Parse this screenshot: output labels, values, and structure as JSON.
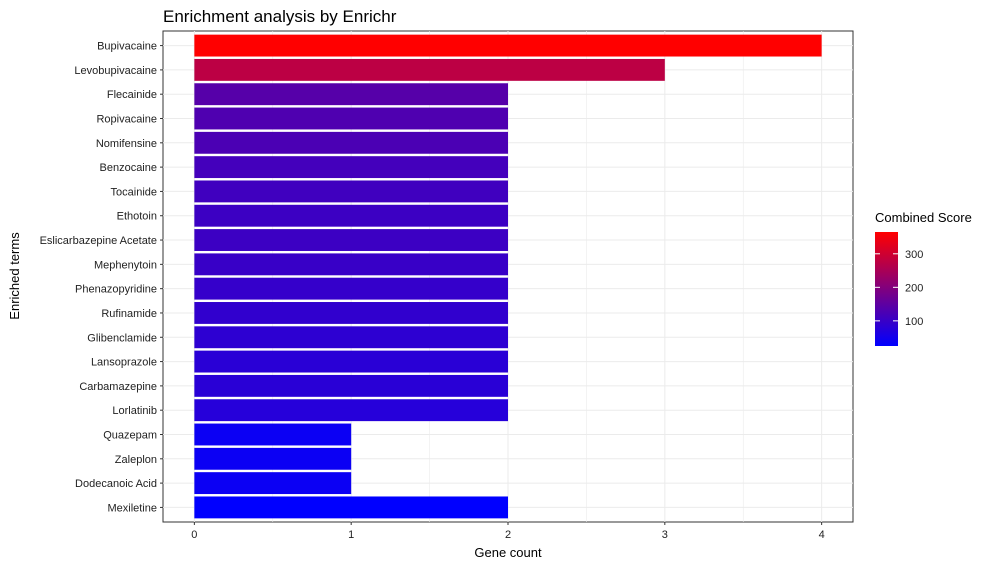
{
  "chart_data": {
    "type": "bar",
    "orientation": "horizontal",
    "title": "Enrichment analysis by Enrichr",
    "xlabel": "Gene count",
    "ylabel": "Enriched terms",
    "xlim": [
      0,
      4
    ],
    "xticks": [
      "0",
      "1",
      "2",
      "3",
      "4"
    ],
    "grid": true,
    "legend": {
      "title": "Combined Score",
      "placement": "right",
      "ticks": [
        "100",
        "200",
        "300"
      ],
      "tick_values": [
        100,
        200,
        300
      ],
      "range": [
        25,
        365
      ],
      "low_color": "#0000FF",
      "high_color": "#FF0000"
    },
    "categories": [
      "Bupivacaine",
      "Levobupivacaine",
      "Flecainide",
      "Ropivacaine",
      "Nomifensine",
      "Benzocaine",
      "Tocainide",
      "Ethotoin",
      "Eslicarbazepine Acetate",
      "Mephenytoin",
      "Phenazopyridine",
      "Rufinamide",
      "Glibenclamide",
      "Lansoprazole",
      "Carbamazepine",
      "Lorlatinib",
      "Quazepam",
      "Zaleplon",
      "Dodecanoic Acid",
      "Mexiletine"
    ],
    "values": [
      4,
      3,
      2,
      2,
      2,
      2,
      2,
      2,
      2,
      2,
      2,
      2,
      2,
      2,
      2,
      2,
      1,
      1,
      1,
      2
    ],
    "combined_score": [
      365,
      275,
      140,
      130,
      125,
      115,
      110,
      105,
      105,
      100,
      95,
      90,
      85,
      80,
      80,
      75,
      40,
      40,
      40,
      25
    ]
  }
}
